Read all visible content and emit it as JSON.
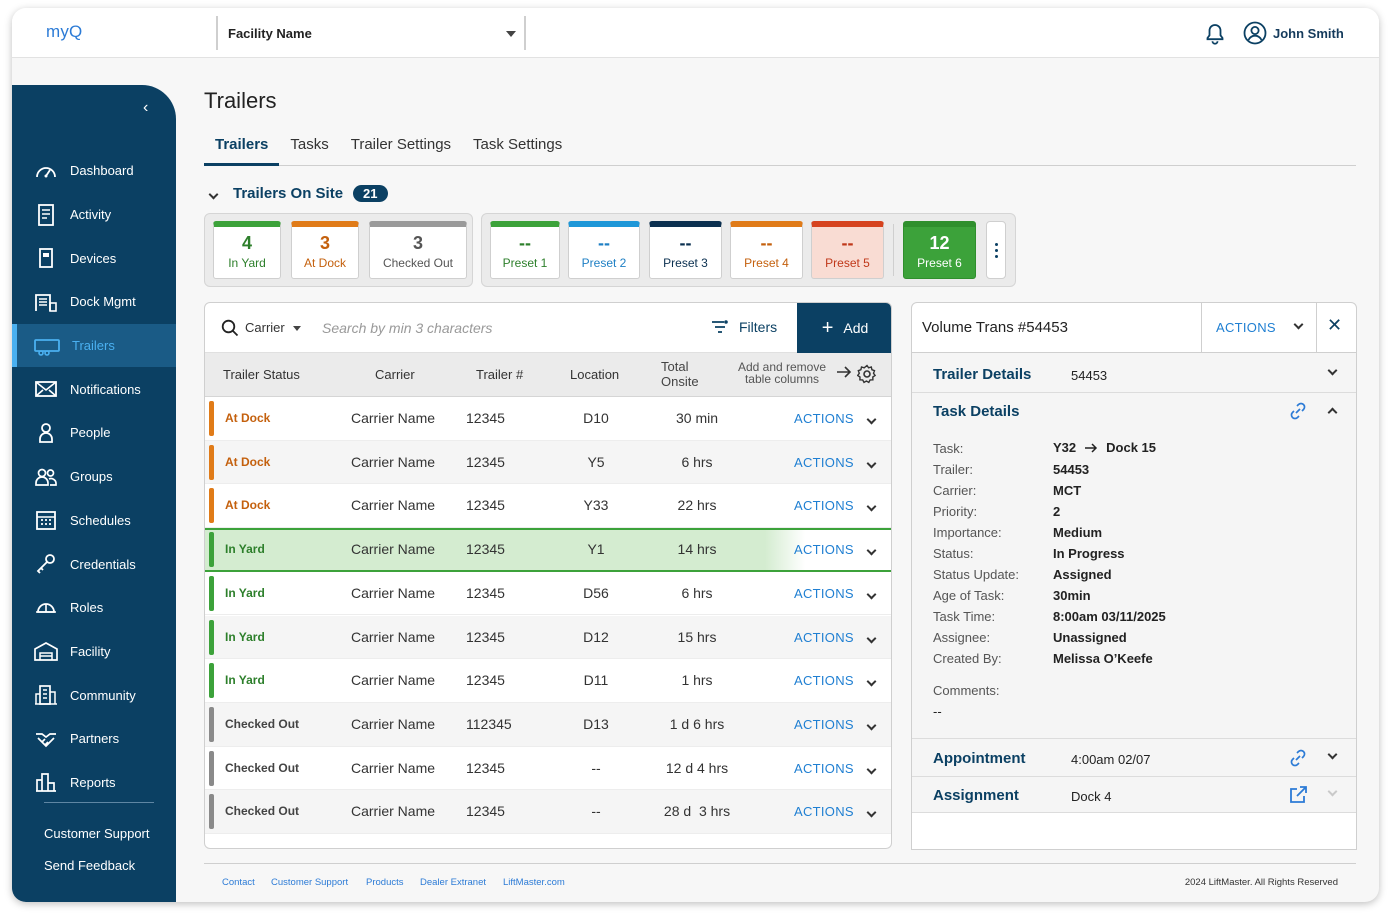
{
  "app": {
    "logo_text": "myQ"
  },
  "header": {
    "facility_select": "Facility Name",
    "user_name": "John Smith"
  },
  "sidebar": {
    "items": [
      {
        "label": "Dashboard",
        "icon": "gauge-icon"
      },
      {
        "label": "Activity",
        "icon": "document-icon"
      },
      {
        "label": "Devices",
        "icon": "device-icon"
      },
      {
        "label": "Dock Mgmt",
        "icon": "dock-icon"
      },
      {
        "label": "Trailers",
        "icon": "trailer-icon",
        "active": true
      },
      {
        "label": "Notifications",
        "icon": "envelope-icon"
      },
      {
        "label": "People",
        "icon": "person-icon"
      },
      {
        "label": "Groups",
        "icon": "group-icon"
      },
      {
        "label": "Schedules",
        "icon": "calendar-icon"
      },
      {
        "label": "Credentials",
        "icon": "key-icon"
      },
      {
        "label": "Roles",
        "icon": "helmet-icon"
      },
      {
        "label": "Facility",
        "icon": "warehouse-icon"
      },
      {
        "label": "Community",
        "icon": "building-icon"
      },
      {
        "label": "Partners",
        "icon": "handshake-icon"
      },
      {
        "label": "Reports",
        "icon": "bar-chart-icon"
      }
    ],
    "customer_support": "Customer Support",
    "send_feedback": "Send Feedback"
  },
  "page": {
    "title": "Trailers",
    "tabs": [
      "Trailers",
      "Tasks",
      "Trailer Settings",
      "Task Settings"
    ],
    "onsite_label": "Trailers On Site",
    "onsite_count": "21"
  },
  "status_cards": [
    {
      "num": "4",
      "label": "In Yard",
      "color": "#3ca23a"
    },
    {
      "num": "3",
      "label": "At Dock",
      "color": "#e07b18"
    },
    {
      "num": "3",
      "label": "Checked Out",
      "color": "#9a9a9a"
    }
  ],
  "preset_cards": [
    {
      "num": "--",
      "label": "Preset 1",
      "color": "#3ca23a"
    },
    {
      "num": "--",
      "label": "Preset 2",
      "color": "#1e97d8"
    },
    {
      "num": "--",
      "label": "Preset 3",
      "color": "#0b3050"
    },
    {
      "num": "--",
      "label": "Preset 4",
      "color": "#e07b18"
    },
    {
      "num": "--",
      "label": "Preset 5",
      "color": "#d6431f"
    },
    {
      "num": "12",
      "label": "Preset 6",
      "color": "#3ca23a"
    }
  ],
  "table": {
    "search": {
      "field": "Carrier",
      "placeholder": "Search by min 3 characters"
    },
    "filters_label": "Filters",
    "add_label": "Add",
    "columns": [
      "Trailer Status",
      "Carrier",
      "Trailer #",
      "Location",
      "Total Onsite Trailer Time"
    ],
    "add_remove_cols": "Add and remove table columns",
    "rows": [
      {
        "status": "At Dock",
        "carrier": "Carrier Name",
        "trailer": "12345",
        "location": "D10",
        "time": "30 min",
        "action": "ACTIONS"
      },
      {
        "status": "At Dock",
        "carrier": "Carrier Name",
        "trailer": "12345",
        "location": "Y5",
        "time": "6 hrs",
        "action": "ACTIONS"
      },
      {
        "status": "At Dock",
        "carrier": "Carrier Name",
        "trailer": "12345",
        "location": "Y33",
        "time": "22 hrs",
        "action": "ACTIONS"
      },
      {
        "status": "In Yard",
        "carrier": "Carrier Name",
        "trailer": "12345",
        "location": "Y1",
        "time": "14 hrs",
        "action": "ACTIONS",
        "selected": true
      },
      {
        "status": "In Yard",
        "carrier": "Carrier Name",
        "trailer": "12345",
        "location": "D56",
        "time": "6 hrs",
        "action": "ACTIONS"
      },
      {
        "status": "In Yard",
        "carrier": "Carrier Name",
        "trailer": "12345",
        "location": "D12",
        "time": "15 hrs",
        "action": "ACTIONS"
      },
      {
        "status": "In Yard",
        "carrier": "Carrier Name",
        "trailer": "12345",
        "location": "D11",
        "time": "1 hrs",
        "action": "ACTIONS"
      },
      {
        "status": "Checked Out",
        "carrier": "Carrier Name",
        "trailer": "112345",
        "location": "D13",
        "time": "1 d 6 hrs",
        "action": "ACTIONS"
      },
      {
        "status": "Checked Out",
        "carrier": "Carrier Name",
        "trailer": "12345",
        "location": "--",
        "time": "12 d 4 hrs",
        "action": "ACTIONS"
      },
      {
        "status": "Checked Out",
        "carrier": "Carrier Name",
        "trailer": "12345",
        "location": "--",
        "time": "28 d  3 hrs",
        "action": "ACTIONS"
      }
    ]
  },
  "panel": {
    "title": "Volume Trans #54453",
    "actions_label": "ACTIONS",
    "trailer_details": {
      "label": "Trailer Details",
      "value": "54453"
    },
    "task_details": {
      "label": "Task Details",
      "task_from": "Y32",
      "task_to": "Dock 15",
      "fields": [
        {
          "k": "Task:",
          "v": ""
        },
        {
          "k": "Trailer:",
          "v": "54453"
        },
        {
          "k": "Carrier:",
          "v": "MCT"
        },
        {
          "k": "Priority:",
          "v": "2"
        },
        {
          "k": "Importance:",
          "v": "Medium"
        },
        {
          "k": "Status:",
          "v": "In Progress"
        },
        {
          "k": "Status Update:",
          "v": "Assigned"
        },
        {
          "k": "Age of Task:",
          "v": "30min"
        },
        {
          "k": "Task Time:",
          "v": "8:00am 03/11/2025"
        },
        {
          "k": "Assignee:",
          "v": "Unassigned"
        },
        {
          "k": "Created By:",
          "v": "Melissa O’Keefe"
        }
      ],
      "comments_label": "Comments:",
      "comments_value": "--"
    },
    "appointment": {
      "label": "Appointment",
      "value": "4:00am 02/07"
    },
    "assignment": {
      "label": "Assignment",
      "value": "Dock 4"
    }
  },
  "footer": {
    "links": [
      "Contact",
      "Customer Support",
      "Products",
      "Dealer Extranet",
      "LiftMaster.com"
    ],
    "copyright": "2024 LiftMaster. All Rights Reserved"
  },
  "colors": {
    "navy": "#0b4063",
    "accent": "#4ab0f0",
    "link": "#1f7fd2"
  }
}
